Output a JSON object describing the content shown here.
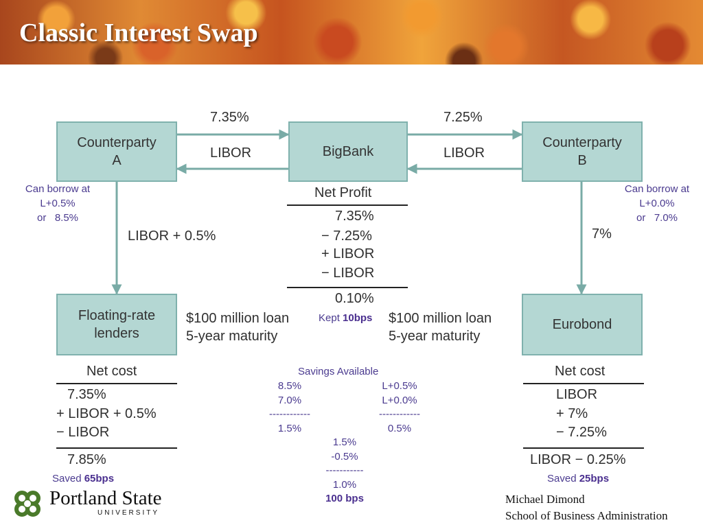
{
  "title": "Classic Interest Swap",
  "boxes": {
    "counterparty_a": [
      "Counterparty",
      "A"
    ],
    "bigbank": "BigBank",
    "counterparty_b": [
      "Counterparty",
      "B"
    ],
    "floating_lenders": [
      "Floating-rate",
      "lenders"
    ],
    "eurobond": "Eurobond"
  },
  "flows": {
    "a_to_bank": "7.35%",
    "bank_to_a": "LIBOR",
    "b_to_bank": "7.25%",
    "bank_to_b": "LIBOR",
    "a_to_lenders": "LIBOR + 0.5%",
    "b_to_eurobond": "7%"
  },
  "borrow_a": [
    "Can borrow at",
    "L+0.5%",
    "or   8.5%"
  ],
  "borrow_b": [
    "Can borrow at",
    "L+0.0%",
    "or   7.0%"
  ],
  "net_profit": {
    "heading": "Net Profit",
    "lines": [
      "7.35%",
      "− 7.25%",
      "+ LIBOR",
      "− LIBOR"
    ],
    "total": "0.10%"
  },
  "kept": {
    "text": "Kept ",
    "value": "10bps"
  },
  "loan_left": [
    "$100 million loan",
    "5-year maturity"
  ],
  "loan_right": [
    "$100 million loan",
    "5-year maturity"
  ],
  "net_cost_a": {
    "heading": "Net cost",
    "lines": [
      "7.35%",
      "+ LIBOR + 0.5%",
      "− LIBOR"
    ],
    "total": "7.85%"
  },
  "net_cost_b": {
    "heading": "Net cost",
    "lines": [
      "LIBOR",
      "+ 7%",
      "− 7.25%"
    ],
    "total": "LIBOR − 0.25%"
  },
  "saved_a": {
    "text": "Saved ",
    "value": "65bps"
  },
  "saved_b": {
    "text": "Saved ",
    "value": "25bps"
  },
  "savings": {
    "heading": "Savings Available",
    "left": [
      "8.5%",
      "7.0%",
      "------------",
      "1.5%"
    ],
    "right": [
      "L+0.5%",
      "L+0.0%",
      "------------",
      "0.5%"
    ],
    "calc": [
      "1.5%",
      "-0.5%",
      "-----------",
      "1.0%"
    ],
    "total": "100 bps"
  },
  "footer": {
    "university": "Portland State",
    "university_sub": "UNIVERSITY",
    "author": "Michael Dimond",
    "school": "School of Business Administration"
  },
  "colors": {
    "box_fill": "#b4d7d3",
    "box_border": "#7fb1ad",
    "arrow": "#79aba6",
    "annotation": "#4a2f8f"
  }
}
